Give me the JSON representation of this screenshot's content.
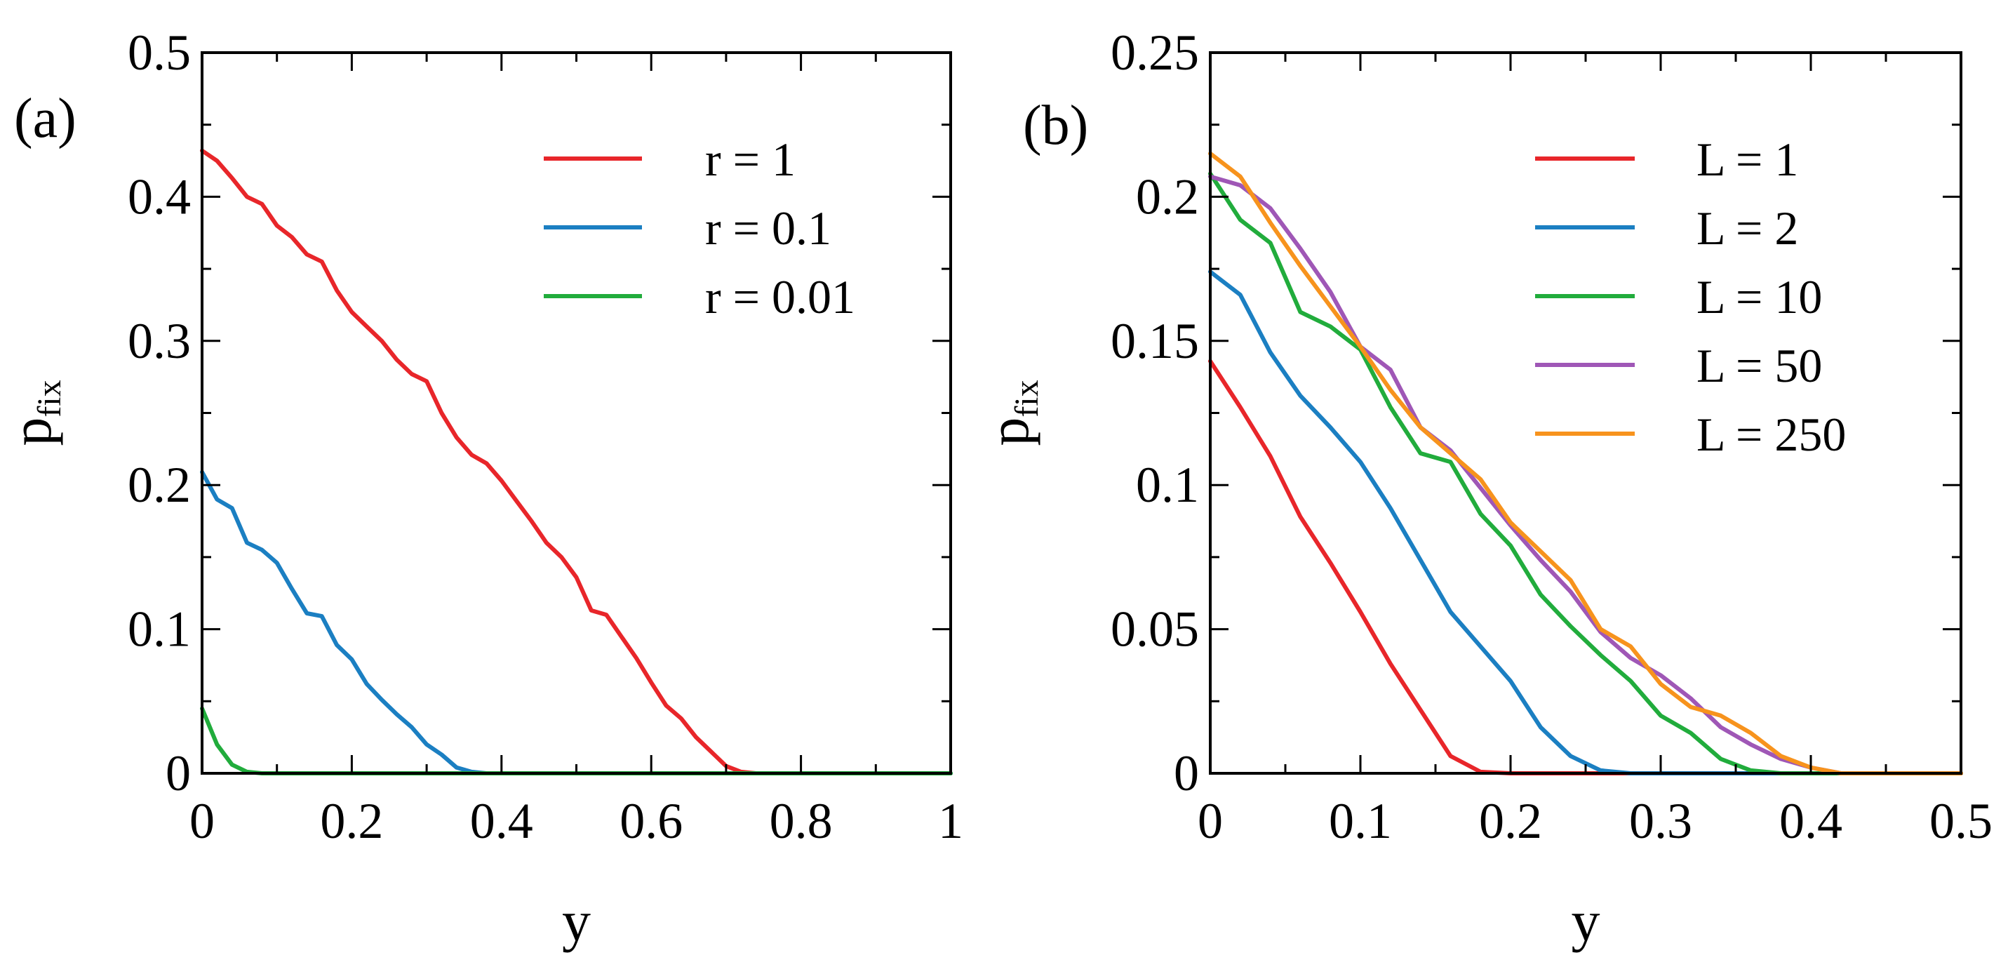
{
  "chart_data": [
    {
      "type": "line",
      "panel_label": "(a)",
      "xlabel": "y",
      "ylabel_main": "p",
      "ylabel_sub": "fix",
      "xlim": [
        0,
        1
      ],
      "ylim": [
        0,
        0.5
      ],
      "x_ticks": [
        0,
        0.2,
        0.4,
        0.6,
        0.8,
        1
      ],
      "x_tick_labels": [
        "0",
        "0.2",
        "0.4",
        "0.6",
        "0.8",
        "1"
      ],
      "y_ticks": [
        0,
        0.1,
        0.2,
        0.3,
        0.4,
        0.5
      ],
      "y_tick_labels": [
        "0",
        "0.1",
        "0.2",
        "0.3",
        "0.4",
        "0.5"
      ],
      "legend_position": "top-right",
      "series": [
        {
          "name": "r = 1",
          "color": "#e8262a",
          "x": [
            0,
            0.02,
            0.04,
            0.06,
            0.08,
            0.1,
            0.12,
            0.14,
            0.16,
            0.18,
            0.2,
            0.22,
            0.24,
            0.26,
            0.28,
            0.3,
            0.32,
            0.34,
            0.36,
            0.38,
            0.4,
            0.42,
            0.44,
            0.46,
            0.48,
            0.5,
            0.52,
            0.54,
            0.56,
            0.58,
            0.6,
            0.62,
            0.64,
            0.66,
            0.68,
            0.7,
            0.72,
            0.74,
            0.76,
            0.8,
            0.9,
            1.0
          ],
          "y": [
            0.432,
            0.425,
            0.413,
            0.4,
            0.395,
            0.38,
            0.372,
            0.36,
            0.355,
            0.335,
            0.32,
            0.31,
            0.3,
            0.287,
            0.277,
            0.272,
            0.25,
            0.233,
            0.221,
            0.215,
            0.203,
            0.189,
            0.175,
            0.16,
            0.15,
            0.136,
            0.113,
            0.11,
            0.095,
            0.08,
            0.063,
            0.047,
            0.038,
            0.025,
            0.015,
            0.005,
            0.001,
            0.0,
            0.0,
            0.0,
            0.0,
            0.0
          ]
        },
        {
          "name": "r = 0.1",
          "color": "#1b7fc2",
          "x": [
            0,
            0.02,
            0.04,
            0.06,
            0.08,
            0.1,
            0.12,
            0.14,
            0.16,
            0.18,
            0.2,
            0.22,
            0.24,
            0.26,
            0.28,
            0.3,
            0.32,
            0.34,
            0.36,
            0.38,
            0.4,
            0.5,
            0.6,
            0.8,
            1.0
          ],
          "y": [
            0.209,
            0.19,
            0.184,
            0.16,
            0.155,
            0.146,
            0.128,
            0.111,
            0.109,
            0.089,
            0.079,
            0.062,
            0.051,
            0.041,
            0.032,
            0.02,
            0.013,
            0.004,
            0.001,
            0.0,
            0.0,
            0.0,
            0.0,
            0.0,
            0.0
          ]
        },
        {
          "name": "r = 0.01",
          "color": "#21ac3c",
          "x": [
            0,
            0.02,
            0.04,
            0.06,
            0.08,
            0.1,
            0.2,
            0.4,
            0.6,
            0.8,
            1.0
          ],
          "y": [
            0.045,
            0.02,
            0.006,
            0.001,
            0.0,
            0.0,
            0.0,
            0.0,
            0.0,
            0.0,
            0.0
          ]
        }
      ]
    },
    {
      "type": "line",
      "panel_label": "(b)",
      "xlabel": "y",
      "ylabel_main": "p",
      "ylabel_sub": "fix",
      "xlim": [
        0,
        0.5
      ],
      "ylim": [
        0,
        0.25
      ],
      "x_ticks": [
        0,
        0.1,
        0.2,
        0.3,
        0.4,
        0.5
      ],
      "x_tick_labels": [
        "0",
        "0.1",
        "0.2",
        "0.3",
        "0.4",
        "0.5"
      ],
      "y_ticks": [
        0,
        0.05,
        0.1,
        0.15,
        0.2,
        0.25
      ],
      "y_tick_labels": [
        "0",
        "0.05",
        "0.1",
        "0.15",
        "0.2",
        "0.25"
      ],
      "legend_position": "top-right",
      "series": [
        {
          "name": "L = 1",
          "color": "#e8262a",
          "x": [
            0,
            0.02,
            0.04,
            0.06,
            0.08,
            0.1,
            0.12,
            0.14,
            0.16,
            0.18,
            0.2,
            0.3,
            0.4,
            0.5
          ],
          "y": [
            0.143,
            0.127,
            0.11,
            0.089,
            0.073,
            0.056,
            0.038,
            0.022,
            0.006,
            0.0005,
            0.0,
            0.0,
            0.0,
            0.0
          ]
        },
        {
          "name": "L = 2",
          "color": "#1b7fc2",
          "x": [
            0,
            0.02,
            0.04,
            0.06,
            0.08,
            0.1,
            0.12,
            0.14,
            0.16,
            0.18,
            0.2,
            0.22,
            0.24,
            0.26,
            0.28,
            0.3,
            0.4,
            0.5
          ],
          "y": [
            0.174,
            0.166,
            0.146,
            0.131,
            0.12,
            0.108,
            0.092,
            0.074,
            0.056,
            0.044,
            0.032,
            0.016,
            0.006,
            0.001,
            0.0,
            0.0,
            0.0,
            0.0
          ]
        },
        {
          "name": "L = 10",
          "color": "#21ac3c",
          "x": [
            0,
            0.02,
            0.04,
            0.06,
            0.08,
            0.1,
            0.12,
            0.14,
            0.16,
            0.18,
            0.2,
            0.22,
            0.24,
            0.26,
            0.28,
            0.3,
            0.32,
            0.34,
            0.36,
            0.38,
            0.4,
            0.42,
            0.44,
            0.5
          ],
          "y": [
            0.208,
            0.192,
            0.184,
            0.16,
            0.155,
            0.147,
            0.127,
            0.111,
            0.108,
            0.09,
            0.079,
            0.062,
            0.051,
            0.041,
            0.032,
            0.02,
            0.014,
            0.005,
            0.001,
            0.0,
            0.0,
            0.0,
            0.0,
            0.0
          ]
        },
        {
          "name": "L = 50",
          "color": "#9f57b6",
          "x": [
            0,
            0.02,
            0.04,
            0.06,
            0.08,
            0.1,
            0.12,
            0.14,
            0.16,
            0.18,
            0.2,
            0.22,
            0.24,
            0.26,
            0.28,
            0.3,
            0.32,
            0.34,
            0.36,
            0.38,
            0.4,
            0.42,
            0.44,
            0.5
          ],
          "y": [
            0.207,
            0.204,
            0.196,
            0.182,
            0.167,
            0.148,
            0.14,
            0.12,
            0.112,
            0.099,
            0.086,
            0.074,
            0.063,
            0.049,
            0.04,
            0.034,
            0.026,
            0.016,
            0.01,
            0.005,
            0.002,
            0.0,
            0.0,
            0.0
          ]
        },
        {
          "name": "L = 250",
          "color": "#f7931d",
          "x": [
            0,
            0.02,
            0.04,
            0.06,
            0.08,
            0.1,
            0.12,
            0.14,
            0.16,
            0.18,
            0.2,
            0.22,
            0.24,
            0.26,
            0.28,
            0.3,
            0.32,
            0.34,
            0.36,
            0.38,
            0.4,
            0.42,
            0.44,
            0.5
          ],
          "y": [
            0.215,
            0.207,
            0.191,
            0.176,
            0.162,
            0.148,
            0.133,
            0.12,
            0.111,
            0.102,
            0.087,
            0.077,
            0.067,
            0.05,
            0.044,
            0.031,
            0.023,
            0.02,
            0.014,
            0.006,
            0.002,
            0.0,
            0.0,
            0.0
          ]
        }
      ]
    }
  ]
}
